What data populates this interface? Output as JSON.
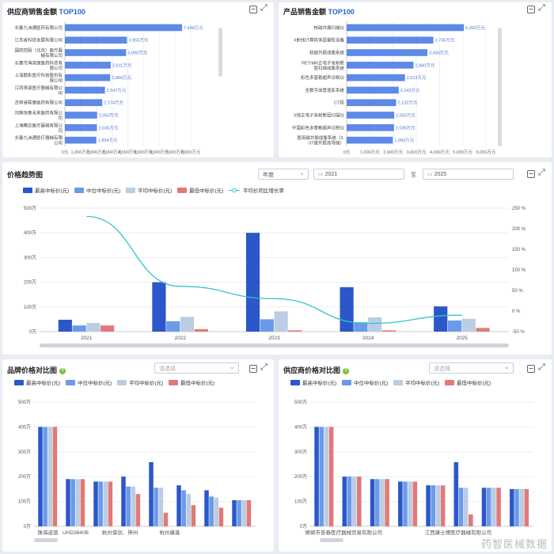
{
  "supplier_sales": {
    "title": "供应商销售金额",
    "title_tag": "TOP100",
    "chart_data": {
      "type": "bar",
      "orientation": "horizontal",
      "categories": [
        "长春九洲通医药有限公司",
        "江苏省科技发展有限公司",
        "国药控股（北京）医疗器械有限公司",
        "长春市海英康医药科技有限公司",
        "上海联影医疗科技股份有限公司",
        "江西来康医疗器械有限公司",
        "吉林省联泰医药有限公司",
        "河南恒泰未来医药有限公司",
        "上海腾达医疗器械有限公司",
        "长春九洲通医疗器械有限公司"
      ],
      "values": [
        7448,
        3950,
        3890,
        2911,
        2880,
        2547,
        2374,
        2050,
        2035,
        1994
      ],
      "value_labels": [
        "7,448万元",
        "3,950万元",
        "3,890万元",
        "2,911万元",
        "2,880万元",
        "2,547万元",
        "2,374万元",
        "2,050万元",
        "2,035万元",
        "1,994万元"
      ],
      "xticks": [
        "0元",
        "1,000万元",
        "2,000万元",
        "3,000万元",
        "4,000万元",
        "5,000万元",
        "6,000万元",
        "7,000万元",
        "8,000万元"
      ],
      "xlim": [
        0,
        8000
      ]
    }
  },
  "product_sales": {
    "title": "产品销售金额",
    "title_tag": "TOP100",
    "chart_data": {
      "type": "bar",
      "orientation": "horizontal",
      "categories": [
        "核磁共振扫描仪",
        "X射线计算机体层摄影设备",
        "核磁共振成像系统",
        "PET/MR正电子发射断层扫描成像系统",
        "彩色多普勒超声诊断仪",
        "全数字血管造影系统",
        "CT机",
        "X线正电子发射断层扫描仪",
        "中国彩色多普勒超声诊断仪",
        "医用磁共振成像系统（3.0T磁共振高场强）"
      ],
      "values": [
        5050,
        3736,
        3480,
        2880,
        2513,
        2243,
        2132,
        2050,
        2039,
        1990
      ],
      "value_labels": [
        "5,050万元",
        "3,736万元",
        "3,480万元",
        "2,880万元",
        "2,513万元",
        "2,243万元",
        "2,132万元",
        "2,050万元",
        "2,039万元",
        "1,990万元"
      ],
      "xticks": [
        "0元",
        "1,000万元",
        "2,000万元",
        "3,000万元",
        "4,000万元",
        "5,000万元",
        "6,000万元"
      ],
      "xlim": [
        0,
        6000
      ]
    }
  },
  "trend": {
    "title": "价格趋势图",
    "period_select": "年度",
    "date_from": "2021",
    "date_sep": "至",
    "date_to": "2025",
    "chart_data": {
      "type": "bar",
      "categories": [
        "2021",
        "2022",
        "2023",
        "2024",
        "2025"
      ],
      "series": [
        {
          "name": "最高中标价(元)",
          "color": "#2b57c9",
          "values": [
            48,
            200,
            400,
            180,
            102
          ]
        },
        {
          "name": "中位中标价(元)",
          "color": "#6b9be8",
          "values": [
            25,
            42,
            50,
            38,
            45
          ]
        },
        {
          "name": "平均中标价(元)",
          "color": "#bccce4",
          "values": [
            35,
            60,
            82,
            58,
            52
          ]
        },
        {
          "name": "最低中标价(元)",
          "color": "#e07a78",
          "values": [
            25,
            10,
            5,
            5,
            15
          ]
        }
      ],
      "line_series": {
        "name": "平均价同比增长率",
        "color": "#35c3cf",
        "values": [
          230,
          60,
          30,
          -30,
          -10
        ]
      },
      "yticks": [
        "0万",
        "100万",
        "200万",
        "300万",
        "400万",
        "500万"
      ],
      "ylim": [
        0,
        500
      ],
      "y2ticks": [
        "-50 %",
        "0 %",
        "50 %",
        "100 %",
        "150 %",
        "200 %",
        "250 %"
      ],
      "y2lim": [
        -50,
        250
      ]
    }
  },
  "brand": {
    "title": "品牌价格对比图",
    "select_placeholder": "请选择",
    "chart_data": {
      "type": "bar",
      "categories": [
        "珠海迪谱",
        "UHD3840B",
        "杭州保创、神州",
        "杭州康基",
        "",
        "",
        "",
        ""
      ],
      "xtick_labels": [
        "珠海迪谱",
        "UHD3840B",
        "杭州保创、神州",
        "杭州康基"
      ],
      "series": [
        {
          "name": "最高中标价(元)",
          "color": "#2b57c9",
          "values": [
            400,
            190,
            180,
            200,
            258,
            165,
            145,
            105
          ]
        },
        {
          "name": "中位中标价(元)",
          "color": "#6b9be8",
          "values": [
            400,
            190,
            180,
            160,
            155,
            145,
            120,
            105
          ]
        },
        {
          "name": "平均中标价(元)",
          "color": "#bccce4",
          "values": [
            400,
            190,
            180,
            160,
            155,
            130,
            115,
            105
          ]
        },
        {
          "name": "最低中标价(元)",
          "color": "#e07a78",
          "values": [
            400,
            190,
            180,
            130,
            55,
            85,
            75,
            105
          ]
        }
      ],
      "yticks": [
        "0万",
        "100万",
        "200万",
        "300万",
        "400万",
        "500万"
      ],
      "ylim": [
        0,
        500
      ]
    }
  },
  "supplier_price": {
    "title": "供应商价格对比图",
    "select_placeholder": "请选择",
    "chart_data": {
      "type": "bar",
      "categories": [
        "",
        "",
        "",
        "",
        "",
        "",
        "",
        ""
      ],
      "xtick_labels": [
        "邯郸市普春医疗器械贸易有限公司",
        "江西康士博医疗器械有限公司"
      ],
      "series": [
        {
          "name": "最高中标价(元)",
          "color": "#2b57c9",
          "values": [
            400,
            200,
            190,
            180,
            165,
            258,
            155,
            150
          ]
        },
        {
          "name": "中位中标价(元)",
          "color": "#6b9be8",
          "values": [
            400,
            200,
            190,
            180,
            165,
            155,
            155,
            150
          ]
        },
        {
          "name": "平均中标价(元)",
          "color": "#bccce4",
          "values": [
            400,
            200,
            190,
            180,
            165,
            155,
            155,
            150
          ]
        },
        {
          "name": "最低中标价(元)",
          "color": "#e07a78",
          "values": [
            400,
            200,
            190,
            180,
            165,
            48,
            155,
            150
          ]
        }
      ],
      "yticks": [
        "0万",
        "100万",
        "200万",
        "300万",
        "400万",
        "500万"
      ],
      "ylim": [
        0,
        500
      ]
    }
  },
  "watermark": "药智医械数据"
}
